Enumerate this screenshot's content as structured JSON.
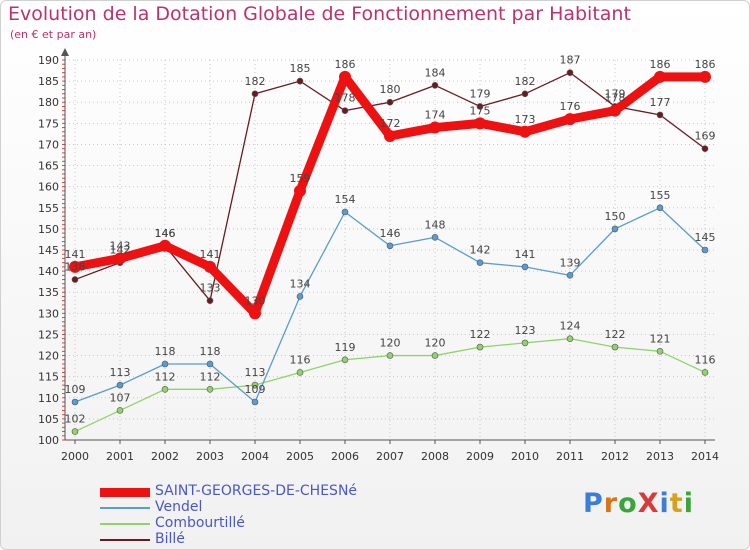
{
  "page": {
    "title": "Evolution de la Dotation Globale de Fonctionnement par Habitant",
    "subtitle": "(en € et par an)",
    "logo": "ProXiti"
  },
  "chart_data": {
    "type": "line",
    "title": "Evolution de la Dotation Globale de Fonctionnement par Habitant",
    "subtitle": "(en € et par an)",
    "xlabel": "",
    "ylabel": "",
    "ylim": [
      100,
      190
    ],
    "y_ticks": [
      100,
      105,
      110,
      115,
      120,
      125,
      130,
      135,
      140,
      145,
      150,
      155,
      160,
      165,
      170,
      175,
      180,
      185,
      190
    ],
    "x": [
      2000,
      2001,
      2002,
      2003,
      2004,
      2005,
      2006,
      2007,
      2008,
      2009,
      2010,
      2011,
      2012,
      2013,
      2014
    ],
    "legend_position": "bottom-left",
    "series": [
      {
        "name": "Billé",
        "color": "#6b1a22",
        "values": [
          138,
          142,
          146,
          133,
          182,
          185,
          178,
          180,
          184,
          179,
          182,
          187,
          179,
          177,
          169
        ]
      },
      {
        "name": "Combourtillé",
        "color": "#8fd36a",
        "values": [
          102,
          107,
          112,
          112,
          113,
          116,
          119,
          120,
          120,
          122,
          123,
          124,
          122,
          121,
          116
        ]
      },
      {
        "name": "Vendel",
        "color": "#5a9bd0",
        "values": [
          109,
          113,
          118,
          118,
          109,
          134,
          154,
          146,
          148,
          142,
          141,
          139,
          150,
          155,
          145
        ]
      },
      {
        "name": "SAINT-GEORGES-DE-CHESNé",
        "color": "#ee1111",
        "values": [
          141,
          143,
          146,
          141,
          130,
          159,
          186,
          172,
          174,
          175,
          173,
          176,
          178,
          186,
          186
        ]
      }
    ],
    "legend_order": [
      "SAINT-GEORGES-DE-CHESNé",
      "Vendel",
      "Combourtillé",
      "Billé"
    ]
  }
}
